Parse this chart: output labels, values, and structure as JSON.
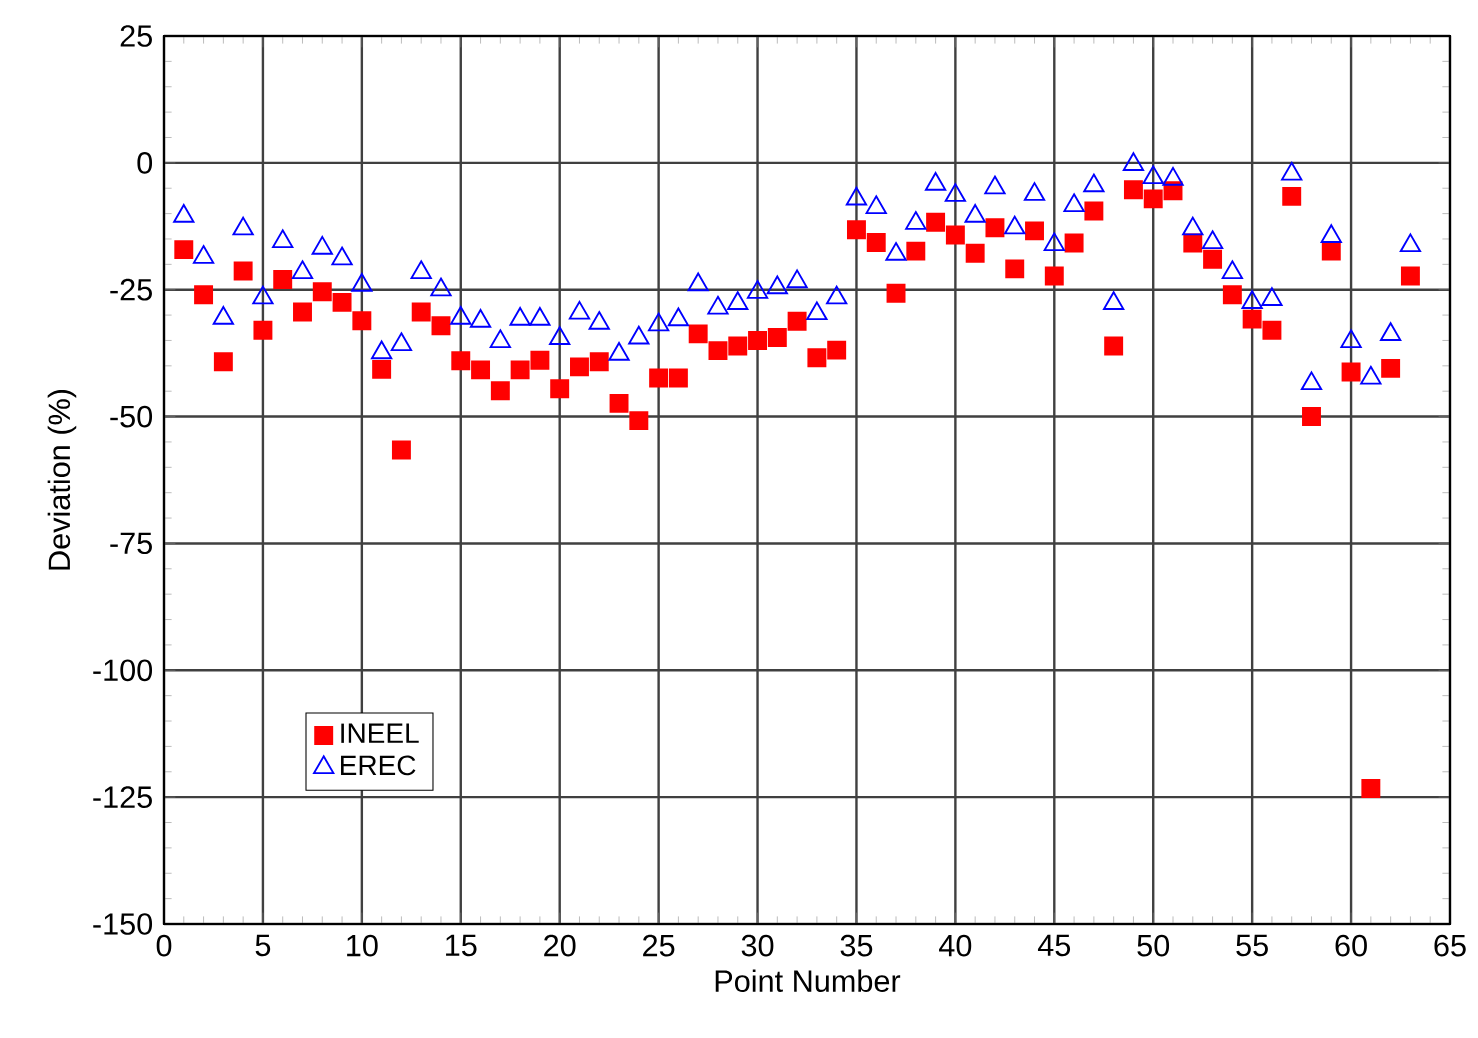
{
  "chart_data": {
    "type": "scatter",
    "xlabel": "Point Number",
    "ylabel": "Deviation (%)",
    "x": [
      1,
      2,
      3,
      4,
      5,
      6,
      7,
      8,
      9,
      10,
      11,
      12,
      13,
      14,
      15,
      16,
      17,
      18,
      19,
      20,
      21,
      22,
      23,
      24,
      25,
      26,
      27,
      28,
      29,
      30,
      31,
      32,
      33,
      34,
      35,
      36,
      37,
      38,
      39,
      40,
      41,
      42,
      43,
      44,
      45,
      46,
      47,
      48,
      49,
      50,
      51,
      52,
      53,
      54,
      55,
      56,
      57,
      58,
      59,
      60,
      61,
      62,
      63
    ],
    "series": [
      {
        "name": "INEEL",
        "color": "#ff0000",
        "marker": "square",
        "values": [
          -17.1,
          -26,
          -39.2,
          -21.3,
          -33,
          -23,
          -29.4,
          -25.4,
          -27.5,
          -31.1,
          -40.7,
          -56.6,
          -29.4,
          -32.1,
          -39,
          -40.8,
          -44.9,
          -40.8,
          -38.9,
          -44.5,
          -40.2,
          -39.2,
          -47.4,
          -50.8,
          -42.4,
          -42.4,
          -33.7,
          -37,
          -36.1,
          -35,
          -34.4,
          -31.2,
          -38.4,
          -36.9,
          -13.2,
          -15.7,
          -25.7,
          -17.4,
          -11.7,
          -14.2,
          -17.8,
          -12.8,
          -20.9,
          -13.4,
          -22.3,
          -15.8,
          -9.5,
          -36.1,
          -5.3,
          -7.1,
          -5.5,
          -15.8,
          -19,
          -26,
          -30.8,
          -33,
          -6.6,
          -50,
          -17.4,
          -41.2,
          -123.3,
          -40.5,
          -22.3
        ]
      },
      {
        "name": "EREC",
        "color": "#0000ff",
        "marker": "triangle",
        "values": [
          -10.5,
          -18.6,
          -30.6,
          -13,
          -26.6,
          -15.5,
          -21.6,
          -16.8,
          -18.9,
          -24.1,
          -37.4,
          -35.8,
          -21.6,
          -25,
          -30.6,
          -31.2,
          -35.2,
          -30.8,
          -30.8,
          -34.6,
          -29.6,
          -31.6,
          -37.7,
          -34.5,
          -31.9,
          -30.9,
          -24,
          -28.6,
          -27.7,
          -25.5,
          -24.6,
          -23.4,
          -29.7,
          -26.6,
          -7.1,
          -8.8,
          -18,
          -11.9,
          -4.2,
          -6.4,
          -10.5,
          -4.9,
          -12.8,
          -6.2,
          -16.1,
          -8.4,
          -4.5,
          -27.7,
          -0.3,
          -2.9,
          -3.2,
          -13,
          -15.7,
          -21.6,
          -27.5,
          -26.9,
          -2.2,
          -43.5,
          -14.5,
          -35.2,
          -42.4,
          -33.8,
          -16.3
        ]
      }
    ],
    "xlim": [
      0,
      65
    ],
    "ylim": [
      -150,
      25
    ],
    "xticks": [
      0,
      5,
      10,
      15,
      20,
      25,
      30,
      35,
      40,
      45,
      50,
      55,
      60,
      65
    ],
    "yticks": [
      -150,
      -125,
      -100,
      -75,
      -50,
      -25,
      0,
      25
    ],
    "grid": true,
    "legend": "bottom left"
  }
}
